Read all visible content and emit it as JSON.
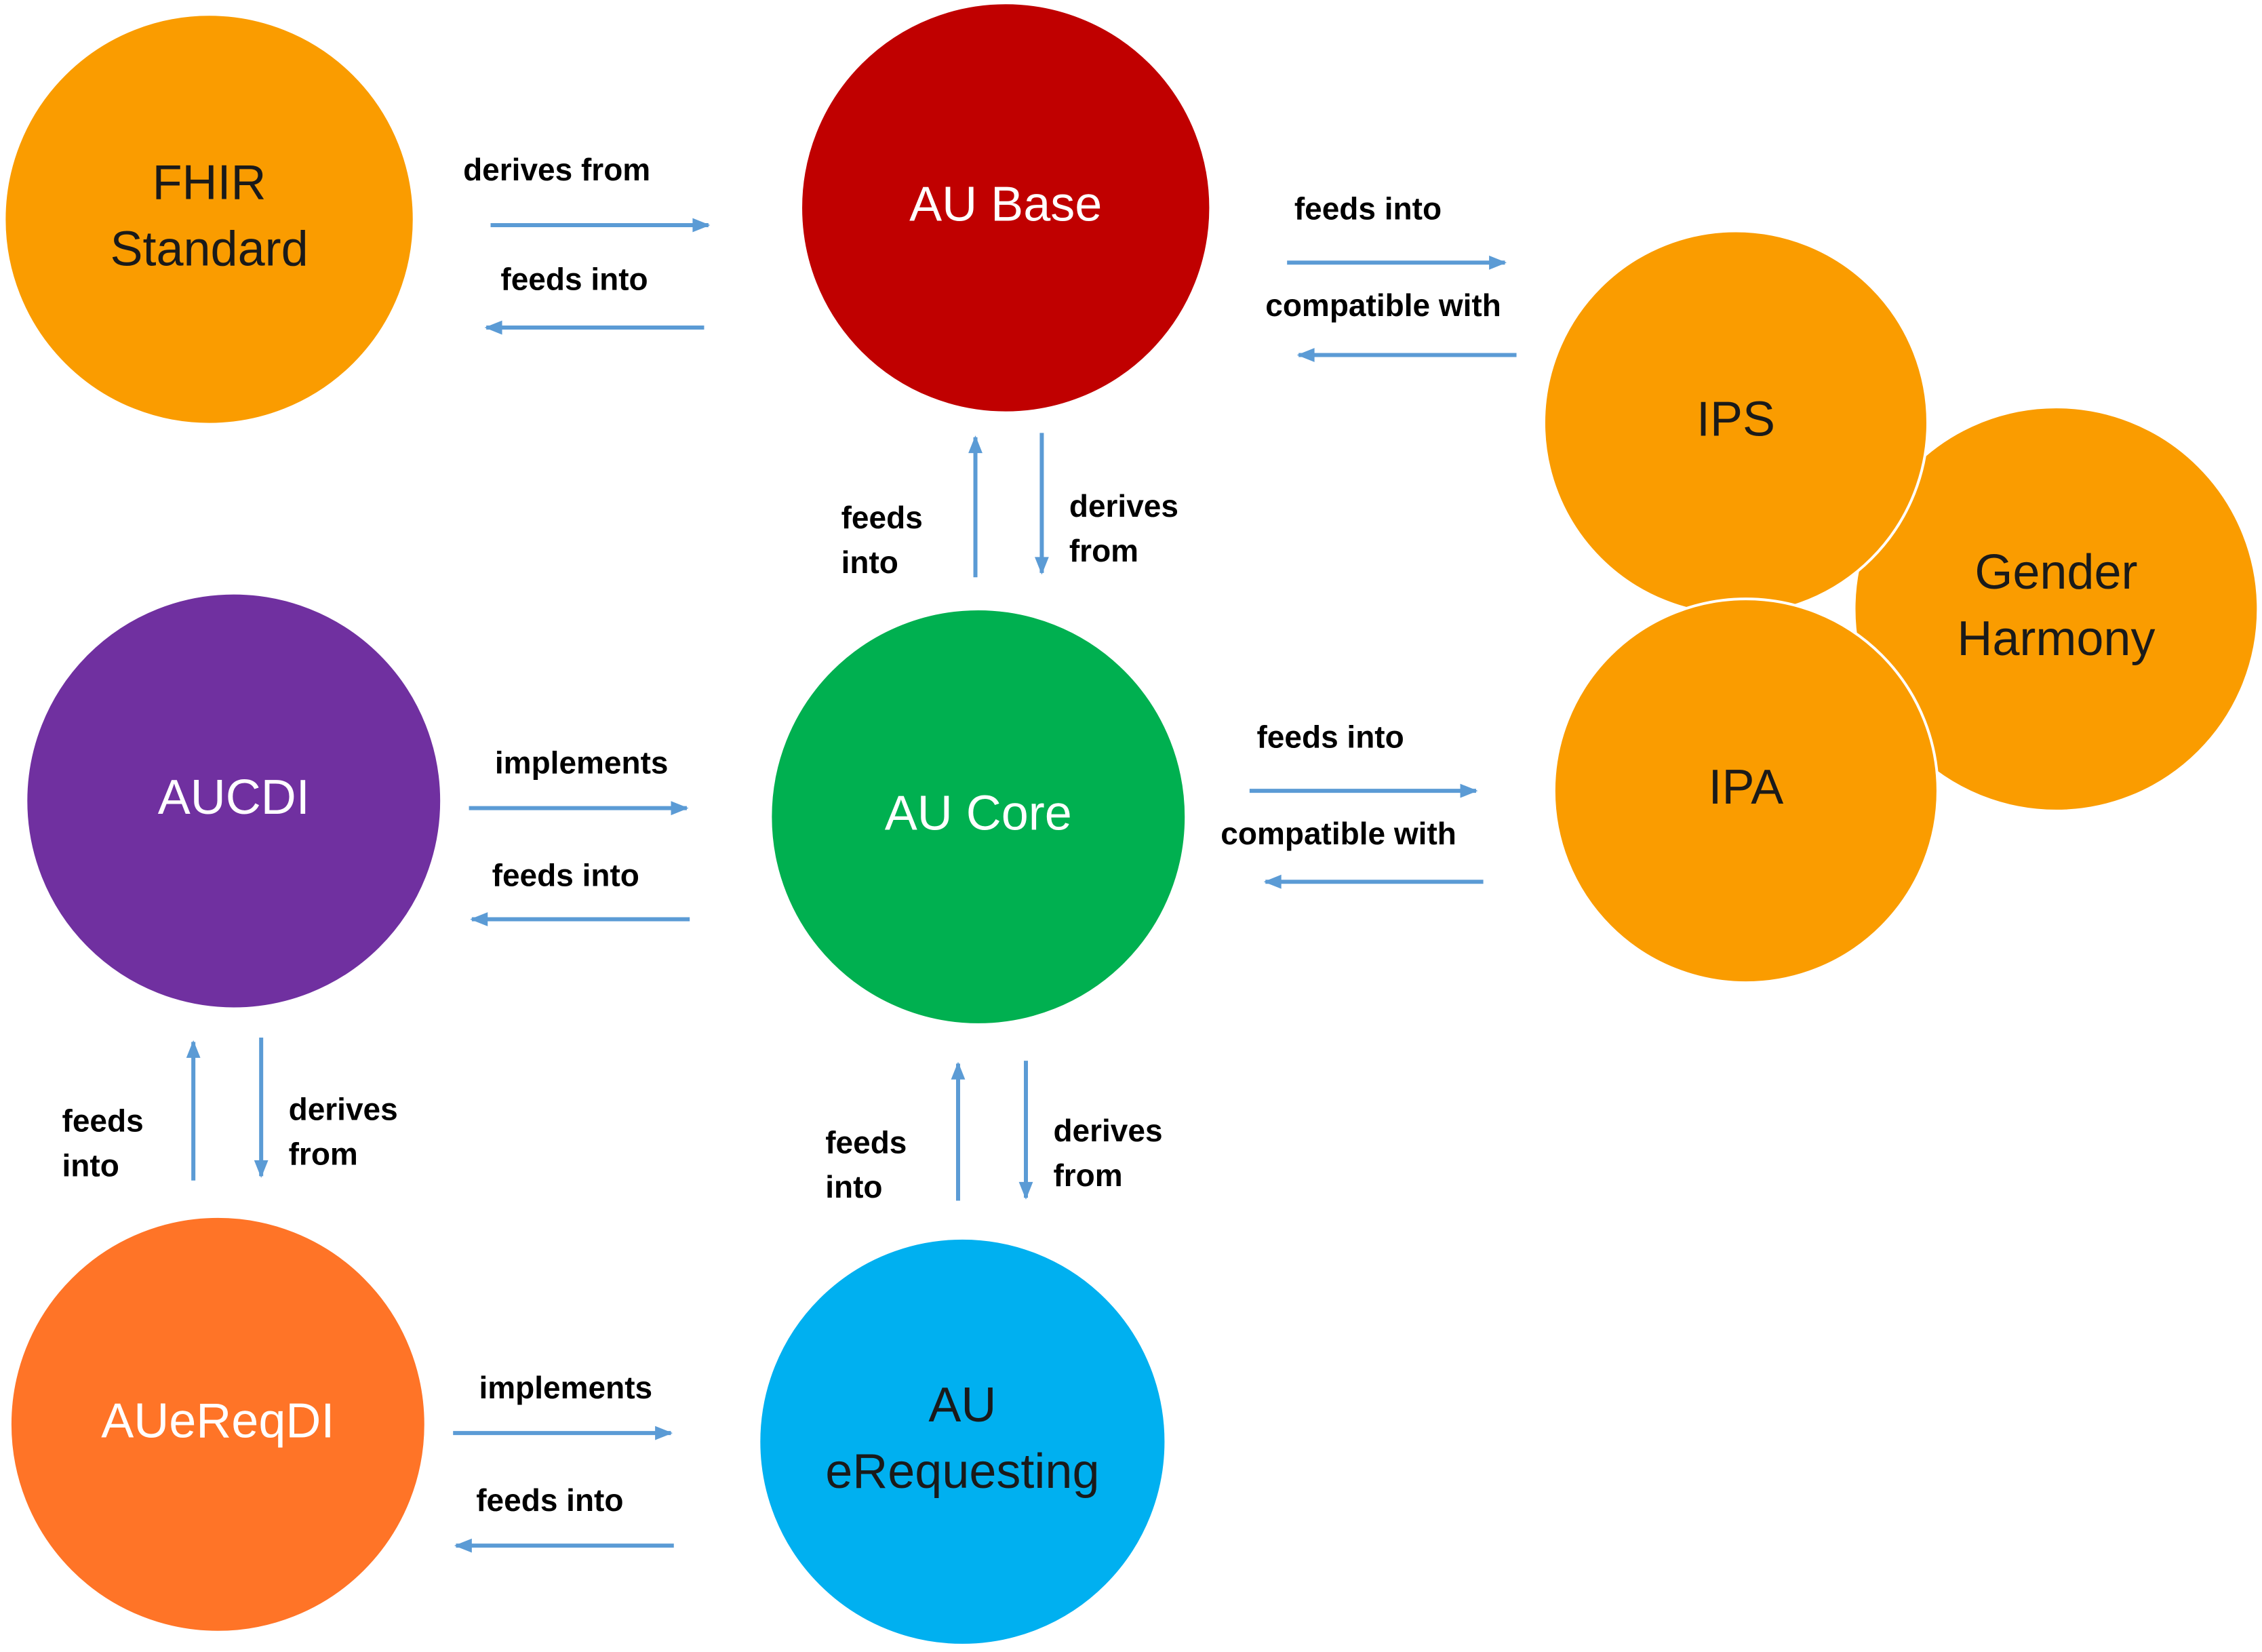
{
  "colors": {
    "arrow": "#5B9BD5",
    "edge_text": "#000000"
  },
  "nodes": {
    "fhir_standard": {
      "lines": [
        "FHIR",
        "Standard"
      ],
      "fill": "#FA9C00",
      "text_color": "#1A1A1A"
    },
    "au_base": {
      "lines": [
        "AU Base"
      ],
      "fill": "#C00000",
      "text_color": "#FFFFFF"
    },
    "ips": {
      "lines": [
        "IPS"
      ],
      "fill": "#FA9C00",
      "text_color": "#1A1A1A"
    },
    "gender_harmony": {
      "lines": [
        "Gender",
        "Harmony"
      ],
      "fill": "#FA9C00",
      "text_color": "#1A1A1A"
    },
    "ipa": {
      "lines": [
        "IPA"
      ],
      "fill": "#FA9C00",
      "text_color": "#1A1A1A"
    },
    "aucdi": {
      "lines": [
        "AUCDI"
      ],
      "fill": "#7030A0",
      "text_color": "#FFFFFF"
    },
    "au_core": {
      "lines": [
        "AU Core"
      ],
      "fill": "#00B050",
      "text_color": "#FFFFFF"
    },
    "auereqdi": {
      "lines": [
        "AUeReqDI"
      ],
      "fill": "#FF7427",
      "text_color": "#FFFFFF"
    },
    "au_erequesting": {
      "lines": [
        "AU",
        "eRequesting"
      ],
      "fill": "#00B0F0",
      "text_color": "#1A1A1A"
    }
  },
  "edges": {
    "fhir_base_right": [
      "derives from"
    ],
    "fhir_base_left": [
      "feeds into"
    ],
    "base_ips_right": [
      "feeds into"
    ],
    "base_ips_left": [
      "compatible with"
    ],
    "core_base_up": [
      "feeds",
      "into"
    ],
    "core_base_down": [
      "derives",
      "from"
    ],
    "aucdi_core_right": [
      "implements"
    ],
    "aucdi_core_left": [
      "feeds into"
    ],
    "core_ipa_right": [
      "feeds into"
    ],
    "core_ipa_left": [
      "compatible with"
    ],
    "auereqdi_aucdi_up": [
      "feeds",
      "into"
    ],
    "auereqdi_aucdi_down": [
      "derives",
      "from"
    ],
    "ereq_core_up": [
      "feeds",
      "into"
    ],
    "ereq_core_down": [
      "derives",
      "from"
    ],
    "auereqdi_ereq_right": [
      "implements"
    ],
    "auereqdi_ereq_left": [
      "feeds into"
    ]
  }
}
